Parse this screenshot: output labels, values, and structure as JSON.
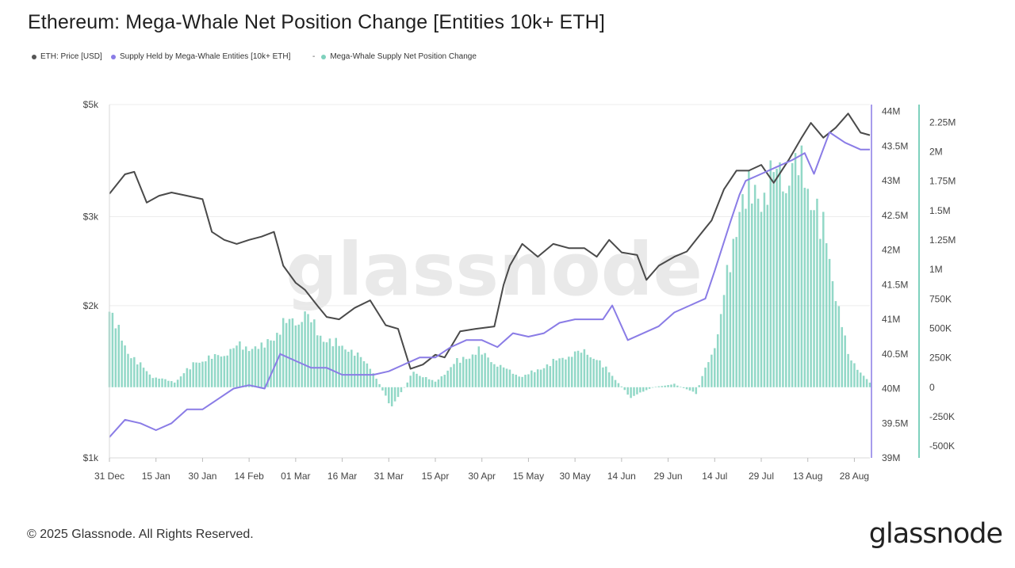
{
  "header": {
    "title": "Ethereum: Mega-Whale Net Position Change [Entities 10k+ ETH]"
  },
  "legend": {
    "items": [
      {
        "label": "ETH: Price [USD]",
        "color": "#555555"
      },
      {
        "label": "Supply Held by Mega-Whale Entities [10k+ ETH]",
        "color": "#8a7ce6"
      },
      {
        "label": "Mega-Whale Supply Net Position Change",
        "color": "#7fd1bd",
        "prefix": "-"
      }
    ]
  },
  "footer": {
    "copyright": "© 2025 Glassnode. All Rights Reserved.",
    "brand": "glassnode"
  },
  "watermark": "glassnode",
  "chart_data": {
    "type": "line",
    "x_ticks": [
      "31 Dec",
      "15 Jan",
      "30 Jan",
      "14 Feb",
      "01 Mar",
      "16 Mar",
      "31 Mar",
      "15 Apr",
      "30 Apr",
      "15 May",
      "30 May",
      "14 Jun",
      "29 Jun",
      "14 Jul",
      "29 Jul",
      "13 Aug",
      "28 Aug"
    ],
    "x_range": [
      "2024-12-31",
      "2025-09-02"
    ],
    "axes": {
      "price": {
        "ticks": [
          "$1k",
          "$2k",
          "$3k",
          "$5k"
        ],
        "values": [
          1000,
          2000,
          3000,
          5000
        ],
        "scale": "log",
        "range": [
          1000,
          5000
        ]
      },
      "supply": {
        "ticks": [
          "39M",
          "39.5M",
          "40M",
          "40.5M",
          "41M",
          "41.5M",
          "42M",
          "42.5M",
          "43M",
          "43.5M",
          "44M"
        ],
        "range": [
          39000000,
          44100000
        ]
      },
      "net_change": {
        "ticks": [
          "-500K",
          "-250K",
          "0",
          "250K",
          "500K",
          "750K",
          "1M",
          "1.25M",
          "1.5M",
          "1.75M",
          "2M",
          "2.25M"
        ],
        "range": [
          -600000,
          2400000
        ]
      }
    },
    "series": [
      {
        "name": "ETH: Price [USD]",
        "axis": "price",
        "color": "#4a4a4a",
        "x": [
          "2024-12-31",
          "2025-01-05",
          "2025-01-08",
          "2025-01-12",
          "2025-01-16",
          "2025-01-20",
          "2025-01-25",
          "2025-01-30",
          "2025-02-02",
          "2025-02-06",
          "2025-02-10",
          "2025-02-14",
          "2025-02-18",
          "2025-02-22",
          "2025-02-25",
          "2025-03-01",
          "2025-03-04",
          "2025-03-08",
          "2025-03-11",
          "2025-03-15",
          "2025-03-20",
          "2025-03-25",
          "2025-03-30",
          "2025-04-03",
          "2025-04-07",
          "2025-04-11",
          "2025-04-15",
          "2025-04-18",
          "2025-04-23",
          "2025-04-28",
          "2025-05-04",
          "2025-05-07",
          "2025-05-09",
          "2025-05-13",
          "2025-05-18",
          "2025-05-23",
          "2025-05-28",
          "2025-06-02",
          "2025-06-06",
          "2025-06-10",
          "2025-06-14",
          "2025-06-19",
          "2025-06-22",
          "2025-06-26",
          "2025-07-01",
          "2025-07-05",
          "2025-07-09",
          "2025-07-13",
          "2025-07-17",
          "2025-07-21",
          "2025-07-25",
          "2025-07-29",
          "2025-08-02",
          "2025-08-07",
          "2025-08-11",
          "2025-08-14",
          "2025-08-18",
          "2025-08-22",
          "2025-08-26",
          "2025-08-30",
          "2025-09-02"
        ],
        "values": [
          3330,
          3640,
          3680,
          3200,
          3300,
          3350,
          3300,
          3250,
          2800,
          2700,
          2650,
          2700,
          2740,
          2800,
          2400,
          2220,
          2150,
          2000,
          1900,
          1880,
          1980,
          2050,
          1830,
          1800,
          1500,
          1530,
          1600,
          1580,
          1780,
          1800,
          1820,
          2200,
          2400,
          2650,
          2500,
          2650,
          2600,
          2600,
          2500,
          2700,
          2550,
          2520,
          2250,
          2400,
          2500,
          2560,
          2750,
          2950,
          3400,
          3700,
          3700,
          3800,
          3500,
          3900,
          4300,
          4600,
          4300,
          4500,
          4800,
          4400,
          4350
        ]
      },
      {
        "name": "Supply Held by Mega-Whale Entities [10k+ ETH]",
        "axis": "supply",
        "color": "#8a7ce6",
        "x": [
          "2024-12-31",
          "2025-01-05",
          "2025-01-10",
          "2025-01-15",
          "2025-01-20",
          "2025-01-25",
          "2025-01-30",
          "2025-02-04",
          "2025-02-09",
          "2025-02-14",
          "2025-02-19",
          "2025-02-23",
          "2025-02-24",
          "2025-03-01",
          "2025-03-06",
          "2025-03-11",
          "2025-03-16",
          "2025-03-21",
          "2025-03-26",
          "2025-03-31",
          "2025-04-05",
          "2025-04-10",
          "2025-04-15",
          "2025-04-20",
          "2025-04-25",
          "2025-04-30",
          "2025-05-05",
          "2025-05-10",
          "2025-05-15",
          "2025-05-20",
          "2025-05-25",
          "2025-05-30",
          "2025-06-04",
          "2025-06-08",
          "2025-06-11",
          "2025-06-16",
          "2025-06-21",
          "2025-06-26",
          "2025-07-01",
          "2025-07-06",
          "2025-07-11",
          "2025-07-14",
          "2025-07-19",
          "2025-07-22",
          "2025-07-24",
          "2025-07-29",
          "2025-08-03",
          "2025-08-08",
          "2025-08-12",
          "2025-08-15",
          "2025-08-20",
          "2025-08-25",
          "2025-08-30",
          "2025-09-02"
        ],
        "values": [
          39300,
          39550,
          39500,
          39400,
          39500,
          39700,
          39700,
          39850,
          40000,
          40050,
          40000,
          40400,
          40500,
          40400,
          40300,
          40300,
          40200,
          40200,
          40200,
          40250,
          40350,
          40450,
          40450,
          40600,
          40700,
          40700,
          40600,
          40800,
          40750,
          40800,
          40950,
          41000,
          41000,
          41000,
          41200,
          40700,
          40800,
          40900,
          41100,
          41200,
          41300,
          41700,
          42400,
          42800,
          43000,
          43100,
          43200,
          43300,
          43400,
          43100,
          43700,
          43550,
          43450,
          43450
        ]
      }
    ],
    "net_position_change": {
      "name": "Mega-Whale Supply Net Position Change",
      "axis": "net_change",
      "color": "#7fd1bd",
      "x": [
        "2024-12-31",
        "2025-01-07",
        "2025-01-14",
        "2025-01-21",
        "2025-01-28",
        "2025-02-04",
        "2025-02-11",
        "2025-02-18",
        "2025-02-25",
        "2025-03-04",
        "2025-03-11",
        "2025-03-18",
        "2025-03-25",
        "2025-04-01",
        "2025-04-08",
        "2025-04-15",
        "2025-04-22",
        "2025-04-29",
        "2025-05-06",
        "2025-05-13",
        "2025-05-20",
        "2025-05-27",
        "2025-06-03",
        "2025-06-10",
        "2025-06-17",
        "2025-06-24",
        "2025-07-01",
        "2025-07-08",
        "2025-07-15",
        "2025-07-22",
        "2025-07-29",
        "2025-08-05",
        "2025-08-12",
        "2025-08-19",
        "2025-08-26",
        "2025-09-02"
      ],
      "values": [
        720000,
        300000,
        100000,
        50000,
        250000,
        300000,
        400000,
        380000,
        600000,
        700000,
        450000,
        380000,
        200000,
        -200000,
        150000,
        50000,
        250000,
        350000,
        200000,
        100000,
        200000,
        300000,
        350000,
        150000,
        -100000,
        0,
        30000,
        -60000,
        500000,
        1800000,
        1900000,
        2100000,
        2100000,
        1400000,
        300000,
        40000
      ]
    }
  }
}
